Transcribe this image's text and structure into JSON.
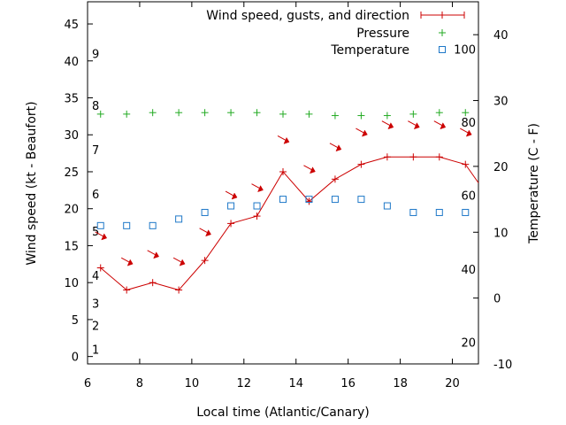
{
  "chart_data": {
    "type": "line",
    "xlabel": "Local time (Atlantic/Canary)",
    "ylabel": "Wind speed (kt - Beaufort)",
    "y2label": "Temperature (C - F)",
    "xlim": [
      6,
      21
    ],
    "ylim": [
      -1,
      48
    ],
    "y2lim": [
      -10,
      45
    ],
    "x_ticks": [
      6,
      8,
      10,
      12,
      14,
      16,
      18,
      20
    ],
    "y_ticks": [
      0,
      5,
      10,
      15,
      20,
      25,
      30,
      35,
      40,
      45
    ],
    "y2_ticks": [
      -10,
      0,
      10,
      20,
      30,
      40
    ],
    "beaufort_labels": [
      {
        "label": "1",
        "y": 1
      },
      {
        "label": "2",
        "y": 4.2
      },
      {
        "label": "3",
        "y": 7.2
      },
      {
        "label": "4",
        "y": 11
      },
      {
        "label": "5",
        "y": 17
      },
      {
        "label": "6",
        "y": 22
      },
      {
        "label": "7",
        "y": 28
      },
      {
        "label": "8",
        "y": 34
      },
      {
        "label": "9",
        "y": 41
      }
    ],
    "fahrenheit_labels": [
      {
        "label": "20",
        "y2": -6.7
      },
      {
        "label": "40",
        "y2": 4.4
      },
      {
        "label": "60",
        "y2": 15.6
      },
      {
        "label": "80",
        "y2": 26.7
      },
      {
        "label": "100",
        "y2": 37.8
      }
    ],
    "legend": [
      {
        "label": "Wind speed, gusts, and direction",
        "color": "#cc0000",
        "symbol": "line-plus"
      },
      {
        "label": "Pressure",
        "color": "#22aa22",
        "symbol": "plus"
      },
      {
        "label": "Temperature",
        "color": "#1e78c8",
        "symbol": "square"
      }
    ],
    "legend_position": "top-right",
    "grid": false,
    "series": [
      {
        "name": "Wind speed, gusts, and direction",
        "axis": "left",
        "color": "#cc0000",
        "x": [
          6.5,
          7.5,
          8.5,
          9.5,
          10.5,
          11.5,
          12.5,
          13.5,
          14.5,
          15.5,
          16.5,
          17.5,
          18.5,
          19.5,
          20.5,
          21
        ],
        "y": [
          12,
          9,
          10,
          9,
          13,
          18,
          19,
          25,
          21,
          24,
          26,
          27,
          27,
          27,
          26,
          23.5
        ]
      },
      {
        "name": "Pressure",
        "axis": "left",
        "color": "#22aa22",
        "x": [
          6.5,
          7.5,
          8.5,
          9.5,
          10.5,
          11.5,
          12.5,
          13.5,
          14.5,
          15.5,
          16.5,
          17.5,
          18.5,
          19.5,
          20.5
        ],
        "y": [
          32.8,
          32.8,
          33.0,
          33.0,
          33.0,
          33.0,
          33.0,
          32.8,
          32.8,
          32.6,
          32.6,
          32.6,
          32.8,
          33.0,
          33.0
        ]
      },
      {
        "name": "Temperature",
        "axis": "right",
        "color": "#1e78c8",
        "x": [
          6.5,
          7.5,
          8.5,
          9.5,
          10.5,
          11.5,
          12.5,
          13.5,
          14.5,
          15.5,
          16.5,
          17.5,
          18.5,
          19.5,
          20.5
        ],
        "y": [
          11,
          11,
          11,
          12,
          13,
          14,
          14,
          15,
          15,
          15,
          15,
          14,
          13,
          13,
          13
        ]
      }
    ],
    "wind_direction": {
      "color": "#cc0000",
      "arrows": [
        {
          "x": 6.5,
          "y": 16.5
        },
        {
          "x": 7.5,
          "y": 13
        },
        {
          "x": 8.5,
          "y": 14
        },
        {
          "x": 9.5,
          "y": 13
        },
        {
          "x": 10.5,
          "y": 17
        },
        {
          "x": 11.5,
          "y": 22
        },
        {
          "x": 12.5,
          "y": 23
        },
        {
          "x": 13.5,
          "y": 29.5
        },
        {
          "x": 14.5,
          "y": 25.5
        },
        {
          "x": 15.5,
          "y": 28.5
        },
        {
          "x": 16.5,
          "y": 30.5
        },
        {
          "x": 17.5,
          "y": 31.5
        },
        {
          "x": 18.5,
          "y": 31.5
        },
        {
          "x": 19.5,
          "y": 31.5
        },
        {
          "x": 20.5,
          "y": 30.5
        }
      ]
    }
  }
}
